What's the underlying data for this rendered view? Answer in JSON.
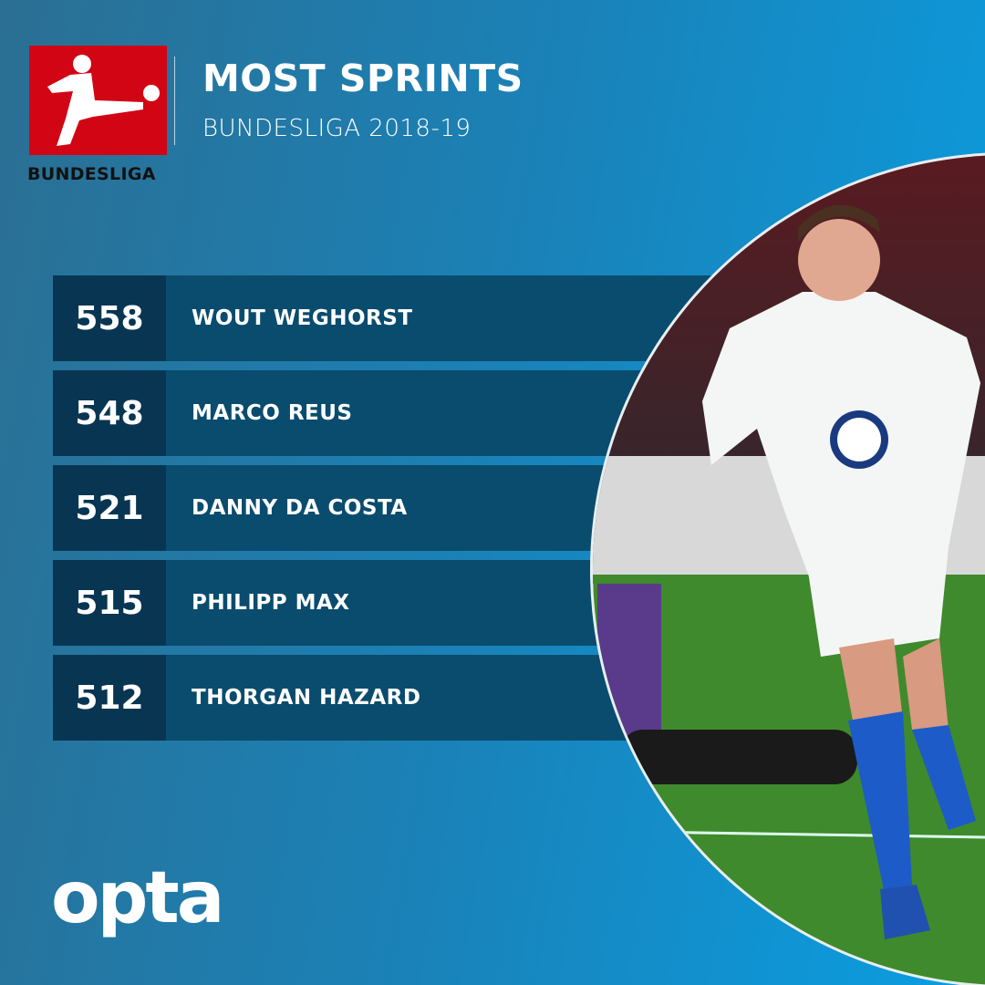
{
  "header": {
    "title": "MOST SPRINTS",
    "subtitle": "BUNDESLIGA 2018-19",
    "logo_text": "BUNDESLIGA"
  },
  "rows": [
    {
      "value": "558",
      "name": "WOUT WEGHORST"
    },
    {
      "value": "548",
      "name": "MARCO REUS"
    },
    {
      "value": "521",
      "name": "DANNY DA COSTA"
    },
    {
      "value": "515",
      "name": "PHILIPP MAX"
    },
    {
      "value": "512",
      "name": "THORGAN HAZARD"
    }
  ],
  "footer": {
    "brand": "opta"
  },
  "colors": {
    "logo_red": "#d20515",
    "number_cell": "#083652",
    "name_cell": "#0a4c6e"
  }
}
